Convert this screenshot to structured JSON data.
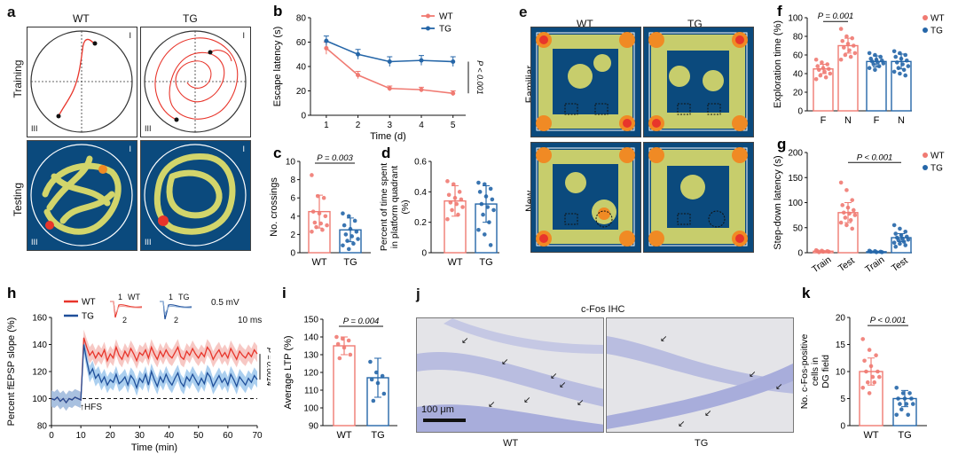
{
  "colors": {
    "wt": "#f07a72",
    "tg": "#2566a8",
    "wt_dark": "#e8352b",
    "tg_dark": "#1f4f9a",
    "heat_bg": "#0b4a7d"
  },
  "panel_a": {
    "label": "a",
    "cols": [
      "WT",
      "TG"
    ],
    "rows": [
      "Training",
      "Testing"
    ],
    "quadrant_marks": [
      "I",
      "III"
    ]
  },
  "panel_e": {
    "label": "e",
    "cols": [
      "WT",
      "TG"
    ],
    "rows": [
      "Familiar",
      "New"
    ]
  },
  "panel_j": {
    "label": "j",
    "title": "c-Fos IHC",
    "cols": [
      "WT",
      "TG"
    ],
    "scalebar": "100 μm"
  },
  "panel_h_extra": {
    "hfs": "HFS",
    "scale_mv": "0.5 mV",
    "scale_ms": "10 ms",
    "trace_wt": "WT",
    "trace_tg": "TG",
    "trace_nums": [
      "1",
      "2"
    ]
  },
  "chart_data": [
    {
      "id": "b",
      "type": "line",
      "label": "b",
      "title": "",
      "xlabel": "Time (d)",
      "ylabel": "Escape latency (s)",
      "x": [
        1,
        2,
        3,
        4,
        5
      ],
      "xlim": [
        0.5,
        5.4
      ],
      "ylim": [
        0,
        80
      ],
      "yticks": [
        0,
        20,
        40,
        60,
        80
      ],
      "xticks": [
        1,
        2,
        3,
        4,
        5
      ],
      "series": [
        {
          "name": "WT",
          "values": [
            55,
            33,
            22,
            21,
            18
          ],
          "err": [
            5,
            3,
            2,
            2,
            2
          ]
        },
        {
          "name": "TG",
          "values": [
            61,
            50,
            44,
            45,
            44
          ],
          "err": [
            4,
            4,
            4,
            4,
            4
          ]
        }
      ],
      "annotation": "P < 0.001",
      "legend": "top-right"
    },
    {
      "id": "c",
      "type": "bar",
      "label": "c",
      "xlabel": "",
      "ylabel": "No. crossings",
      "ylim": [
        0,
        10
      ],
      "yticks": [
        0,
        2,
        4,
        6,
        8,
        10
      ],
      "categories": [
        "WT",
        "TG"
      ],
      "values": [
        4.5,
        2.5
      ],
      "err": [
        1.8,
        1.3
      ],
      "points": [
        [
          8.5,
          6.2,
          6,
          4.5,
          4.3,
          4,
          3.3,
          3.2,
          3,
          2.8,
          2.5,
          2.3
        ],
        [
          4.3,
          4,
          3.5,
          3,
          2.6,
          2.3,
          2,
          1.8,
          1.5,
          1.3,
          1,
          0.8,
          0.4
        ]
      ],
      "annotation": "P = 0.003"
    },
    {
      "id": "d",
      "type": "bar",
      "label": "d",
      "xlabel": "",
      "ylabel": "Percent of time spent in platform quadrant (%)",
      "ylim": [
        0,
        0.6
      ],
      "yticks": [
        0,
        0.2,
        0.4,
        0.6
      ],
      "yticklabels": [
        "0",
        "0.2",
        "0.4",
        "0.6"
      ],
      "categories": [
        "WT",
        "TG"
      ],
      "values": [
        0.34,
        0.32
      ],
      "err": [
        0.1,
        0.12
      ],
      "points": [
        [
          0.47,
          0.45,
          0.4,
          0.38,
          0.36,
          0.35,
          0.33,
          0.32,
          0.3,
          0.28,
          0.25,
          0.22
        ],
        [
          0.46,
          0.45,
          0.42,
          0.4,
          0.37,
          0.35,
          0.32,
          0.3,
          0.28,
          0.25,
          0.2,
          0.15,
          0.12,
          0.05
        ]
      ]
    },
    {
      "id": "f",
      "type": "bar",
      "label": "f",
      "xlabel": "",
      "ylabel": "Exploration time (%)",
      "ylim": [
        0,
        100
      ],
      "yticks": [
        0,
        20,
        40,
        60,
        80,
        100
      ],
      "categories": [
        "F",
        "N",
        "F",
        "N"
      ],
      "groups": [
        "WT",
        "WT",
        "TG",
        "TG"
      ],
      "values": [
        45,
        70,
        53,
        53
      ],
      "err": [
        5,
        8,
        6,
        8
      ],
      "points": [
        [
          55,
          52,
          50,
          48,
          46,
          45,
          44,
          42,
          40,
          38,
          36,
          34
        ],
        [
          88,
          80,
          78,
          75,
          72,
          70,
          68,
          65,
          62,
          60,
          58,
          55
        ],
        [
          62,
          60,
          58,
          56,
          55,
          54,
          53,
          52,
          51,
          50,
          48,
          46,
          44
        ],
        [
          64,
          62,
          60,
          58,
          56,
          54,
          52,
          50,
          48,
          46,
          44,
          42,
          40,
          38
        ]
      ],
      "annotation": "P = 0.001",
      "legend": [
        "WT",
        "TG"
      ]
    },
    {
      "id": "g",
      "type": "bar",
      "label": "g",
      "xlabel": "",
      "ylabel": "Step-down latency (s)",
      "ylim": [
        0,
        200
      ],
      "yticks": [
        0,
        50,
        100,
        150,
        200
      ],
      "categories": [
        "Train",
        "Test",
        "Train",
        "Test"
      ],
      "groups": [
        "WT",
        "WT",
        "TG",
        "TG"
      ],
      "values": [
        3,
        80,
        2,
        30
      ],
      "err": [
        1,
        20,
        1,
        8
      ],
      "points": [
        [
          5,
          4,
          3,
          3,
          2,
          2,
          1
        ],
        [
          140,
          125,
          105,
          95,
          90,
          85,
          80,
          78,
          75,
          70,
          65,
          60,
          55,
          48
        ],
        [
          4,
          3,
          2,
          2,
          1,
          1
        ],
        [
          55,
          48,
          42,
          38,
          35,
          32,
          30,
          28,
          26,
          25,
          22,
          20,
          18,
          15,
          12
        ]
      ],
      "annotation": "P < 0.001",
      "legend": [
        "WT",
        "TG"
      ]
    },
    {
      "id": "h",
      "type": "line",
      "label": "h",
      "xlabel": "Time (min)",
      "ylabel": "Percent fEPSP slope (%)",
      "xlim": [
        0,
        70
      ],
      "ylim": [
        80,
        160
      ],
      "xticks": [
        0,
        10,
        20,
        30,
        40,
        50,
        60,
        70
      ],
      "yticks": [
        80,
        100,
        120,
        140,
        160
      ],
      "series": [
        {
          "name": "WT",
          "values": [
            100,
            99,
            101,
            98,
            100,
            97,
            100,
            99,
            101,
            100,
            99,
            145,
            138,
            132,
            135,
            130,
            134,
            131,
            136,
            128,
            133,
            130,
            138,
            132,
            129,
            135,
            131,
            137,
            133,
            128,
            134,
            132,
            136,
            130,
            138,
            133,
            129,
            135,
            131,
            136,
            132,
            130,
            134,
            138,
            131,
            129,
            135,
            132,
            137,
            133,
            130,
            134,
            131,
            138,
            135,
            129,
            133,
            136,
            131,
            134,
            130,
            137,
            133,
            129,
            135,
            132,
            130,
            134,
            131,
            136,
            133
          ]
        },
        {
          "name": "TG",
          "values": [
            100,
            99,
            101,
            98,
            100,
            97,
            100,
            99,
            101,
            100,
            99,
            140,
            128,
            118,
            122,
            115,
            118,
            112,
            116,
            110,
            114,
            112,
            118,
            111,
            113,
            116,
            110,
            117,
            114,
            108,
            115,
            112,
            118,
            110,
            120,
            114,
            109,
            116,
            112,
            118,
            113,
            110,
            115,
            119,
            112,
            109,
            116,
            113,
            118,
            114,
            110,
            115,
            111,
            119,
            116,
            109,
            113,
            117,
            112,
            115,
            110,
            118,
            114,
            109,
            116,
            113,
            110,
            115,
            112,
            117,
            114
          ]
        }
      ],
      "annotation": "P = 0.0014",
      "legend": "top-left"
    },
    {
      "id": "i",
      "type": "bar",
      "label": "i",
      "xlabel": "",
      "ylabel": "Average LTP (%)",
      "ylim": [
        90,
        150
      ],
      "yticks": [
        90,
        100,
        110,
        120,
        130,
        140,
        150
      ],
      "categories": [
        "WT",
        "TG"
      ],
      "values": [
        135,
        117
      ],
      "err": [
        5,
        11
      ],
      "points": [
        [
          140,
          139,
          138,
          136,
          134,
          130,
          128
        ],
        [
          126,
          120,
          118,
          116,
          114,
          108,
          104
        ]
      ],
      "annotation": "P = 0.004"
    },
    {
      "id": "k",
      "type": "bar",
      "label": "k",
      "xlabel": "",
      "ylabel": "No. c-Fos-positive cells in DG field",
      "ylim": [
        0,
        20
      ],
      "yticks": [
        0,
        5,
        10,
        15,
        20
      ],
      "categories": [
        "WT",
        "TG"
      ],
      "values": [
        10,
        5
      ],
      "err": [
        2.5,
        1.5
      ],
      "points": [
        [
          16,
          14,
          13,
          12,
          11,
          10,
          10,
          9,
          9,
          8,
          8,
          7,
          6
        ],
        [
          7,
          6,
          6,
          5,
          5,
          5,
          4,
          4,
          4,
          3,
          2,
          2
        ]
      ],
      "annotation": "P < 0.001"
    }
  ]
}
